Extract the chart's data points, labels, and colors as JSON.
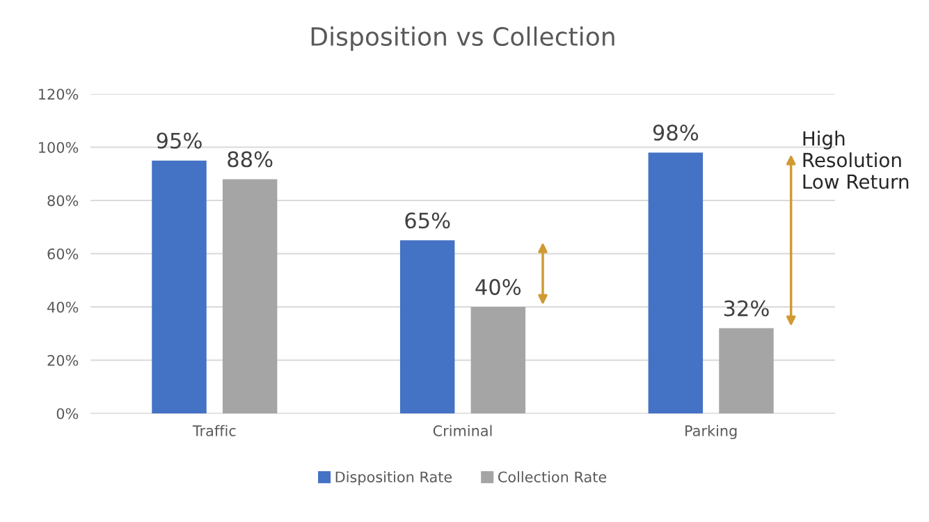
{
  "chart_data": {
    "type": "bar",
    "title": "Disposition vs Collection",
    "categories": [
      "Traffic",
      "Criminal",
      "Parking"
    ],
    "series": [
      {
        "name": "Disposition Rate",
        "color": "#4472c4",
        "values": [
          95,
          65,
          98
        ],
        "value_labels": [
          "95%",
          "65%",
          "98%"
        ]
      },
      {
        "name": "Collection Rate",
        "color": "#a5a5a5",
        "values": [
          88,
          40,
          32
        ],
        "value_labels": [
          "88%",
          "40%",
          "32%"
        ]
      }
    ],
    "ylim": [
      0,
      120
    ],
    "yticks": [
      {
        "value": 0,
        "label": "0%"
      },
      {
        "value": 20,
        "label": "20%"
      },
      {
        "value": 40,
        "label": "40%"
      },
      {
        "value": 60,
        "label": "60%"
      },
      {
        "value": 80,
        "label": "80%"
      },
      {
        "value": 100,
        "label": "100%"
      },
      {
        "value": 120,
        "label": "120%"
      }
    ],
    "grid": "y",
    "legend": "bottom",
    "annotations": [
      "High\nResolution\nLow Return"
    ]
  }
}
